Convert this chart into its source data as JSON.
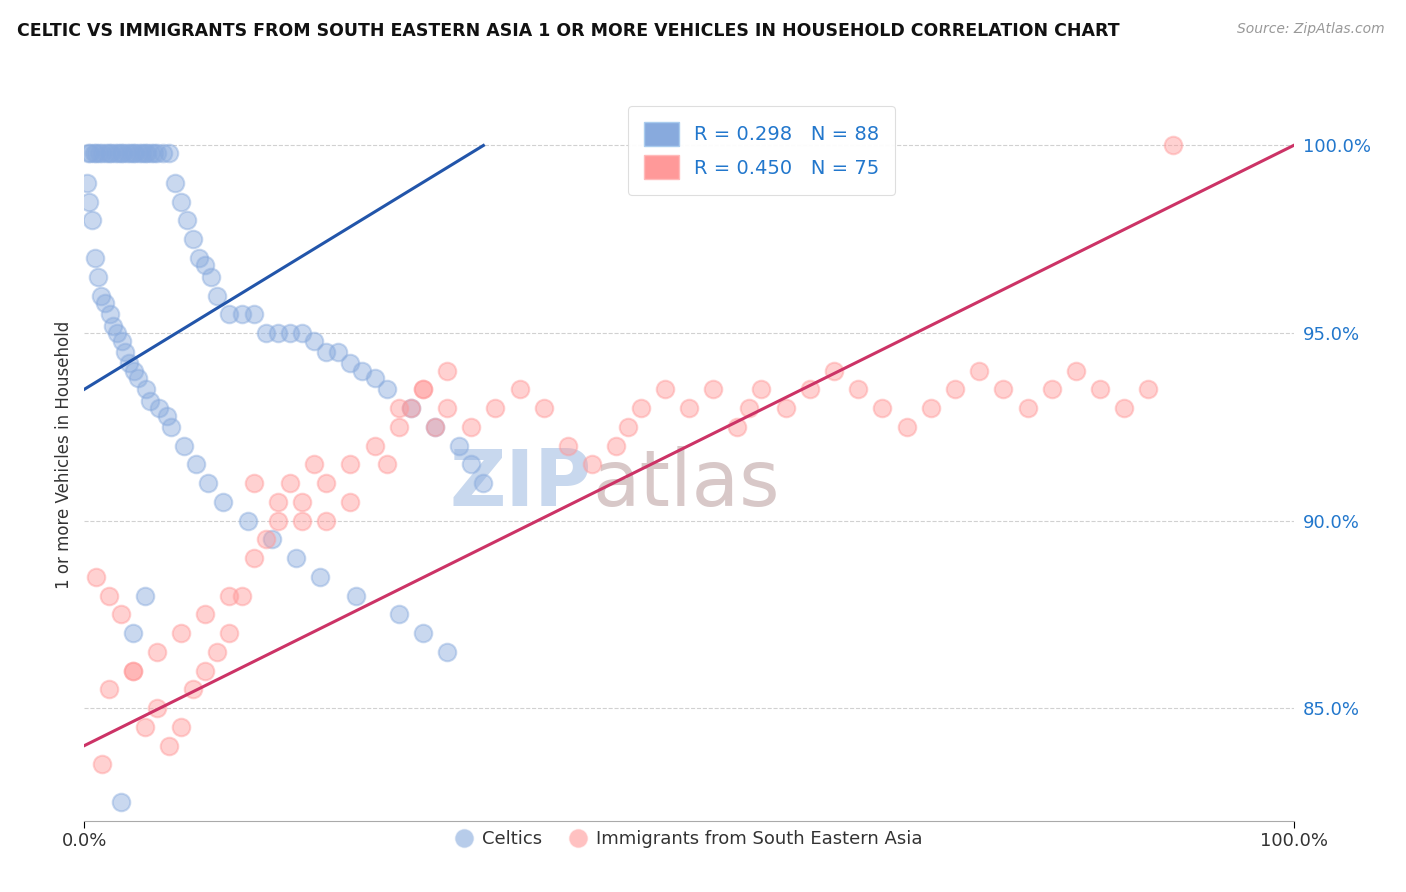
{
  "title": "CELTIC VS IMMIGRANTS FROM SOUTH EASTERN ASIA 1 OR MORE VEHICLES IN HOUSEHOLD CORRELATION CHART",
  "source": "Source: ZipAtlas.com",
  "ylabel": "1 or more Vehicles in Household",
  "legend_label1": "R = 0.298   N = 88",
  "legend_label2": "R = 0.450   N = 75",
  "legend_color1": "#88aadd",
  "legend_color2": "#ff9999",
  "celtics_color": "#88aadd",
  "immigrants_color": "#ff9999",
  "regression_color1": "#2255aa",
  "regression_color2": "#cc3366",
  "watermark_zip": "ZIP",
  "watermark_atlas": "atlas",
  "celtics_x": [
    0.3,
    0.5,
    0.8,
    1.0,
    1.2,
    1.5,
    1.8,
    2.0,
    2.2,
    2.5,
    2.8,
    3.0,
    3.2,
    3.5,
    3.8,
    4.0,
    4.2,
    4.5,
    4.8,
    5.0,
    5.2,
    5.5,
    5.8,
    6.0,
    6.5,
    7.0,
    7.5,
    8.0,
    8.5,
    9.0,
    9.5,
    10.0,
    10.5,
    11.0,
    12.0,
    13.0,
    14.0,
    15.0,
    16.0,
    17.0,
    18.0,
    19.0,
    20.0,
    21.0,
    22.0,
    23.0,
    24.0,
    25.0,
    27.0,
    29.0,
    31.0,
    32.0,
    33.0,
    0.2,
    0.4,
    0.6,
    0.9,
    1.1,
    1.4,
    1.7,
    2.1,
    2.4,
    2.7,
    3.1,
    3.4,
    3.7,
    4.1,
    4.4,
    5.1,
    5.4,
    6.2,
    6.8,
    7.2,
    8.2,
    9.2,
    10.2,
    11.5,
    13.5,
    15.5,
    17.5,
    19.5,
    22.5,
    26.0,
    28.0,
    30.0,
    5.0,
    4.0,
    3.0
  ],
  "celtics_y": [
    99.8,
    99.8,
    99.8,
    99.8,
    99.8,
    99.8,
    99.8,
    99.8,
    99.8,
    99.8,
    99.8,
    99.8,
    99.8,
    99.8,
    99.8,
    99.8,
    99.8,
    99.8,
    99.8,
    99.8,
    99.8,
    99.8,
    99.8,
    99.8,
    99.8,
    99.8,
    99.0,
    98.5,
    98.0,
    97.5,
    97.0,
    96.8,
    96.5,
    96.0,
    95.5,
    95.5,
    95.5,
    95.0,
    95.0,
    95.0,
    95.0,
    94.8,
    94.5,
    94.5,
    94.2,
    94.0,
    93.8,
    93.5,
    93.0,
    92.5,
    92.0,
    91.5,
    91.0,
    99.0,
    98.5,
    98.0,
    97.0,
    96.5,
    96.0,
    95.8,
    95.5,
    95.2,
    95.0,
    94.8,
    94.5,
    94.2,
    94.0,
    93.8,
    93.5,
    93.2,
    93.0,
    92.8,
    92.5,
    92.0,
    91.5,
    91.0,
    90.5,
    90.0,
    89.5,
    89.0,
    88.5,
    88.0,
    87.5,
    87.0,
    86.5,
    88.0,
    87.0,
    82.5
  ],
  "immigrants_x": [
    1.0,
    2.0,
    3.0,
    4.0,
    5.0,
    6.0,
    7.0,
    8.0,
    9.0,
    10.0,
    11.0,
    12.0,
    13.0,
    14.0,
    15.0,
    16.0,
    17.0,
    18.0,
    19.0,
    20.0,
    22.0,
    24.0,
    25.0,
    26.0,
    27.0,
    28.0,
    29.0,
    30.0,
    32.0,
    34.0,
    36.0,
    38.0,
    40.0,
    42.0,
    44.0,
    45.0,
    46.0,
    48.0,
    50.0,
    52.0,
    54.0,
    55.0,
    56.0,
    58.0,
    60.0,
    62.0,
    64.0,
    66.0,
    68.0,
    70.0,
    72.0,
    74.0,
    76.0,
    78.0,
    80.0,
    82.0,
    84.0,
    86.0,
    88.0,
    90.0,
    30.0,
    28.0,
    26.0,
    20.0,
    22.0,
    18.0,
    16.0,
    14.0,
    12.0,
    10.0,
    8.0,
    6.0,
    4.0,
    2.0,
    1.5
  ],
  "immigrants_y": [
    88.5,
    88.0,
    87.5,
    86.0,
    84.5,
    85.0,
    84.0,
    84.5,
    85.5,
    86.0,
    86.5,
    87.0,
    88.0,
    89.0,
    89.5,
    90.0,
    91.0,
    90.5,
    91.5,
    91.0,
    91.5,
    92.0,
    91.5,
    92.5,
    93.0,
    93.5,
    92.5,
    93.0,
    92.5,
    93.0,
    93.5,
    93.0,
    92.0,
    91.5,
    92.0,
    92.5,
    93.0,
    93.5,
    93.0,
    93.5,
    92.5,
    93.0,
    93.5,
    93.0,
    93.5,
    94.0,
    93.5,
    93.0,
    92.5,
    93.0,
    93.5,
    94.0,
    93.5,
    93.0,
    93.5,
    94.0,
    93.5,
    93.0,
    93.5,
    100.0,
    94.0,
    93.5,
    93.0,
    90.0,
    90.5,
    90.0,
    90.5,
    91.0,
    88.0,
    87.5,
    87.0,
    86.5,
    86.0,
    85.5,
    83.5
  ]
}
